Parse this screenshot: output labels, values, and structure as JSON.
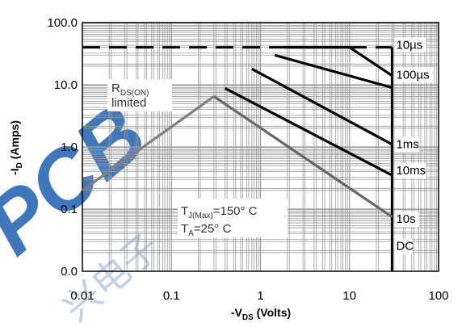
{
  "chart_data": {
    "type": "line",
    "title": "",
    "xlabel": {
      "main": "-V",
      "sub": "DS",
      "tail": " (Volts)"
    },
    "ylabel": {
      "main": "-I",
      "sub": "D",
      "tail": " (Amps)"
    },
    "x_scale": "log",
    "y_scale": "log",
    "xlim": [
      0.01,
      100
    ],
    "ylim": [
      0.01,
      100
    ],
    "grid": true,
    "x_ticks": [
      {
        "value": 0.01,
        "label": "0.01"
      },
      {
        "value": 0.1,
        "label": "0.1"
      },
      {
        "value": 1,
        "label": "1"
      },
      {
        "value": 10,
        "label": "10"
      },
      {
        "value": 100,
        "label": "100"
      }
    ],
    "y_ticks": [
      {
        "value": 100,
        "label": "100.0"
      },
      {
        "value": 10,
        "label": "10.0"
      },
      {
        "value": 1,
        "label": "1.0"
      },
      {
        "value": 0.1,
        "label": "0.1"
      },
      {
        "value": 0.01,
        "label": "0.0"
      }
    ],
    "annotations": {
      "rds": {
        "main": "R",
        "sub": "DS(ON)",
        "line2": "limited"
      },
      "tj": {
        "main": "T",
        "sub": "J(Max)",
        "tail": "=150° C"
      },
      "ta": {
        "main": "T",
        "sub": "A",
        "tail": "=25° C"
      }
    },
    "limit_lines": {
      "current_limit": {
        "y": 40,
        "x_start": 0.01,
        "x_end": 30,
        "style": "dashed"
      },
      "voltage_limit": {
        "x": 30,
        "y_start": 0.01,
        "y_end": 40
      }
    },
    "series": [
      {
        "name": "10µs",
        "color": "#000000",
        "points": [
          [
            1.85,
            40
          ],
          [
            10,
            40
          ],
          [
            30,
            14
          ]
        ]
      },
      {
        "name": "100µs",
        "color": "#000000",
        "points": [
          [
            1.45,
            30
          ],
          [
            30,
            9
          ]
        ]
      },
      {
        "name": "1ms",
        "color": "#000000",
        "points": [
          [
            0.8,
            18
          ],
          [
            30,
            1.1
          ]
        ]
      },
      {
        "name": "10ms",
        "color": "#000000",
        "points": [
          [
            0.4,
            8.8
          ],
          [
            30,
            0.35
          ]
        ]
      },
      {
        "name": "10s",
        "color": "#666666",
        "points": [
          [
            0.3,
            6.5
          ],
          [
            30,
            0.075
          ]
        ]
      },
      {
        "name": "DC",
        "color": "#808080",
        "points": [
          [
            0.01,
            0.2
          ],
          [
            0.3,
            6.5
          ]
        ]
      }
    ],
    "curve_labels": [
      {
        "text": "10µs",
        "x": 32,
        "y": 38
      },
      {
        "text": "100µs",
        "x": 32,
        "y": 12.5
      },
      {
        "text": "1ms",
        "x": 32,
        "y": 0.95
      },
      {
        "text": "10ms",
        "x": 32,
        "y": 0.36
      },
      {
        "text": "10s",
        "x": 32,
        "y": 0.06
      },
      {
        "text": "DC",
        "x": 32,
        "y": 0.022
      }
    ]
  },
  "watermark": {
    "text": "PCB",
    "chinese": "兴电子"
  }
}
